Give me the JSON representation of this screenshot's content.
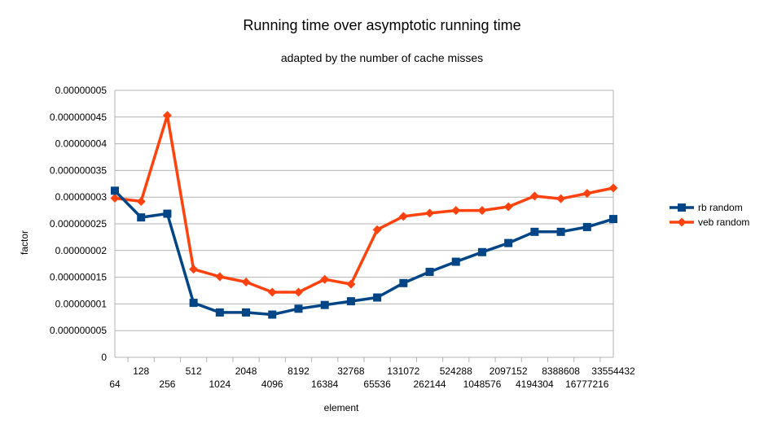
{
  "chart_data": {
    "type": "line",
    "title": "Running time over asymptotic running time",
    "subtitle": "adapted by the number of cache misses",
    "xlabel": "element",
    "ylabel": "factor",
    "ylim": [
      0,
      5e-08
    ],
    "y_ticks": [
      "0",
      "0.000000005",
      "0.00000001",
      "0.000000015",
      "0.00000002",
      "0.000000025",
      "0.00000003",
      "0.000000035",
      "0.00000004",
      "0.000000045",
      "0.00000005"
    ],
    "grid": true,
    "legend_position": "right",
    "categories": [
      "64",
      "128",
      "256",
      "512",
      "1024",
      "2048",
      "4096",
      "8192",
      "16384",
      "32768",
      "65536",
      "131072",
      "262144",
      "524288",
      "1048576",
      "2097152",
      "4194304",
      "8388608",
      "16777216",
      "33554432"
    ],
    "series": [
      {
        "name": "rb random",
        "color": "#004586",
        "marker": "square",
        "values": [
          3.12e-08,
          2.62e-08,
          2.69e-08,
          1.02e-08,
          8.4e-09,
          8.4e-09,
          8e-09,
          9.1e-09,
          9.8e-09,
          1.05e-08,
          1.12e-08,
          1.39e-08,
          1.6e-08,
          1.79e-08,
          1.97e-08,
          2.14e-08,
          2.35e-08,
          2.35e-08,
          2.44e-08,
          2.59e-08
        ]
      },
      {
        "name": "veb random",
        "color": "#ff420e",
        "marker": "diamond",
        "values": [
          2.98e-08,
          2.92e-08,
          4.53e-08,
          1.65e-08,
          1.51e-08,
          1.41e-08,
          1.22e-08,
          1.22e-08,
          1.46e-08,
          1.37e-08,
          2.39e-08,
          2.64e-08,
          2.7e-08,
          2.75e-08,
          2.75e-08,
          2.82e-08,
          3.02e-08,
          2.97e-08,
          3.07e-08,
          3.17e-08
        ]
      }
    ]
  }
}
